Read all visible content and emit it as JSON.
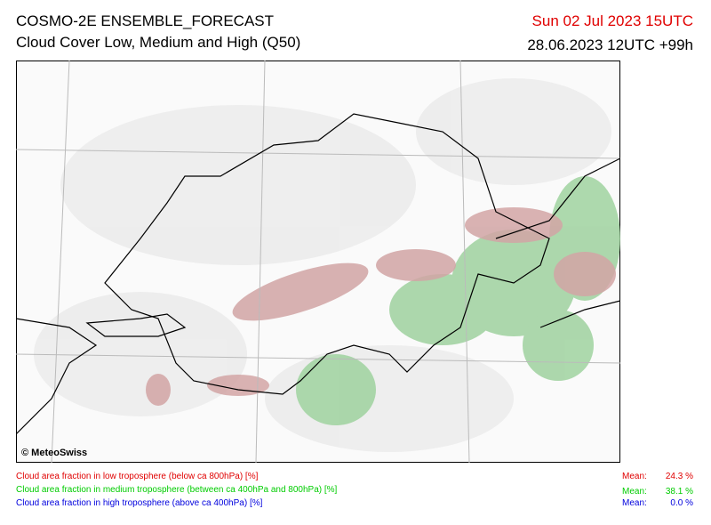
{
  "header": {
    "title": "COSMO-2E ENSEMBLE_FORECAST",
    "subtitle": "Cloud Cover Low, Medium and High (Q50)",
    "valid_time": "Sun 02 Jul 2023 15UTC",
    "valid_time_color": "#e00000",
    "run_time": "28.06.2023 12UTC +99h"
  },
  "map": {
    "credit": "© MeteoSwiss"
  },
  "legend": [
    {
      "label": "Cloud area fraction in low troposphere (below ca 800hPa) [%]",
      "mean_label": "Mean:",
      "mean": "24.3 %",
      "color": "#e00000"
    },
    {
      "label": "Cloud area fraction in medium troposphere (between ca 400hPa and 800hPa) [%]",
      "mean_label": "Mean:",
      "mean": "38.1 %",
      "color": "#00cc00"
    },
    {
      "label": "Cloud area fraction in high troposphere (above ca 400hPa) [%]",
      "mean_label": "Mean:",
      "mean": "0.0 %",
      "color": "#0000dd"
    }
  ]
}
